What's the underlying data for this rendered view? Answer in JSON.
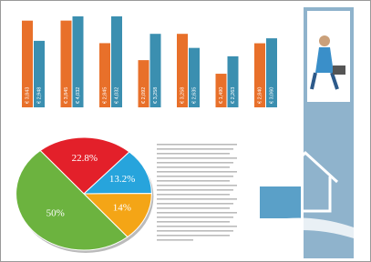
{
  "chart_data": [
    {
      "type": "bar",
      "categories": [
        null,
        null,
        null,
        null,
        null,
        null,
        null
      ],
      "series": [
        {
          "color": "#e8702a",
          "values": [
            3843,
            3845,
            2845,
            2092,
            3258,
            1490,
            2840
          ],
          "value_labels": [
            "€ 3,843",
            "€ 3,845",
            "€ 2,845",
            "€ 2,092",
            "€ 3,258",
            "€ 1,490",
            "€ 2,840"
          ]
        },
        {
          "color": "#3b8fb0",
          "values": [
            2948,
            4032,
            4032,
            3258,
            2635,
            2263,
            3060
          ],
          "value_labels": [
            "€ 2,948",
            "€ 4,032",
            "€ 4,032",
            "€ 3,258",
            "€ 2,635",
            "€ 2,263",
            "€ 3,060"
          ]
        }
      ]
    },
    {
      "type": "pie",
      "values": [
        22.8,
        13.2,
        14,
        50
      ],
      "value_labels": [
        "22.8%",
        "13.2%",
        "14%",
        "50%"
      ],
      "colors": [
        "#e3202a",
        "#27a4dc",
        "#f4a516",
        "#6cb33f"
      ]
    }
  ]
}
